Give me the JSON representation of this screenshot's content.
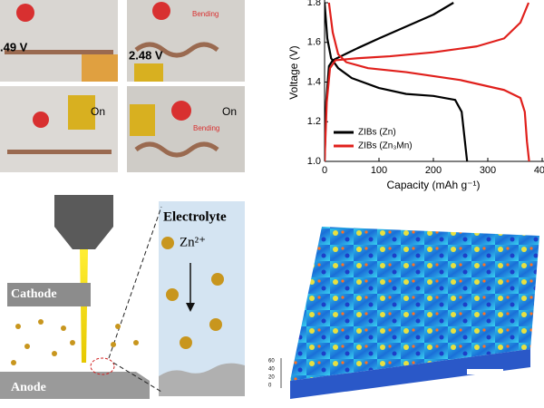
{
  "photos": {
    "labels": [
      ".49 V",
      "Bending",
      "2.48 V",
      "On",
      "Bending",
      "On"
    ]
  },
  "chart_data": {
    "type": "line",
    "x_label": "Capacity (mAh g⁻¹)",
    "y_label": "Voltage (V)",
    "xlim": [
      0,
      400
    ],
    "ylim": [
      1.0,
      1.8
    ],
    "xticks": [
      0,
      100,
      200,
      300,
      400
    ],
    "yticks": [
      1.0,
      1.2,
      1.4,
      1.6,
      1.8
    ],
    "legend": "lower left",
    "series": [
      {
        "name": "ZIBs (Zn)",
        "color": "#000000",
        "curves": [
          {
            "x": [
              0,
              5,
              12,
              25,
              50,
              100,
              150,
              200,
              240,
              252,
              258,
              262
            ],
            "values": [
              1.8,
              1.62,
              1.52,
              1.47,
              1.42,
              1.37,
              1.34,
              1.33,
              1.31,
              1.25,
              1.1,
              1.0
            ]
          },
          {
            "x": [
              0,
              3,
              8,
              15,
              30,
              60,
              100,
              150,
              200,
              237
            ],
            "values": [
              1.0,
              1.3,
              1.48,
              1.51,
              1.53,
              1.57,
              1.62,
              1.68,
              1.74,
              1.8
            ]
          }
        ]
      },
      {
        "name": "ZIBs (Zn₃Mn)",
        "color": "#e0201c",
        "curves": [
          {
            "x": [
              8,
              15,
              25,
              40,
              80,
              150,
              250,
              330,
              360,
              368,
              372,
              376
            ],
            "values": [
              1.8,
              1.65,
              1.54,
              1.5,
              1.47,
              1.45,
              1.41,
              1.36,
              1.32,
              1.25,
              1.1,
              1.0
            ]
          },
          {
            "x": [
              0,
              4,
              10,
              20,
              60,
              120,
              200,
              280,
              330,
              360,
              375
            ],
            "values": [
              1.0,
              1.3,
              1.47,
              1.51,
              1.52,
              1.53,
              1.55,
              1.58,
              1.62,
              1.7,
              1.8
            ]
          }
        ]
      }
    ]
  },
  "diagram": {
    "cathode": "Cathode",
    "anode": "Anode",
    "electrolyte": "Electrolyte",
    "ion": "Zn²⁺"
  },
  "surface": {
    "z_ticks": [
      "60",
      "40",
      "20",
      "0"
    ]
  }
}
